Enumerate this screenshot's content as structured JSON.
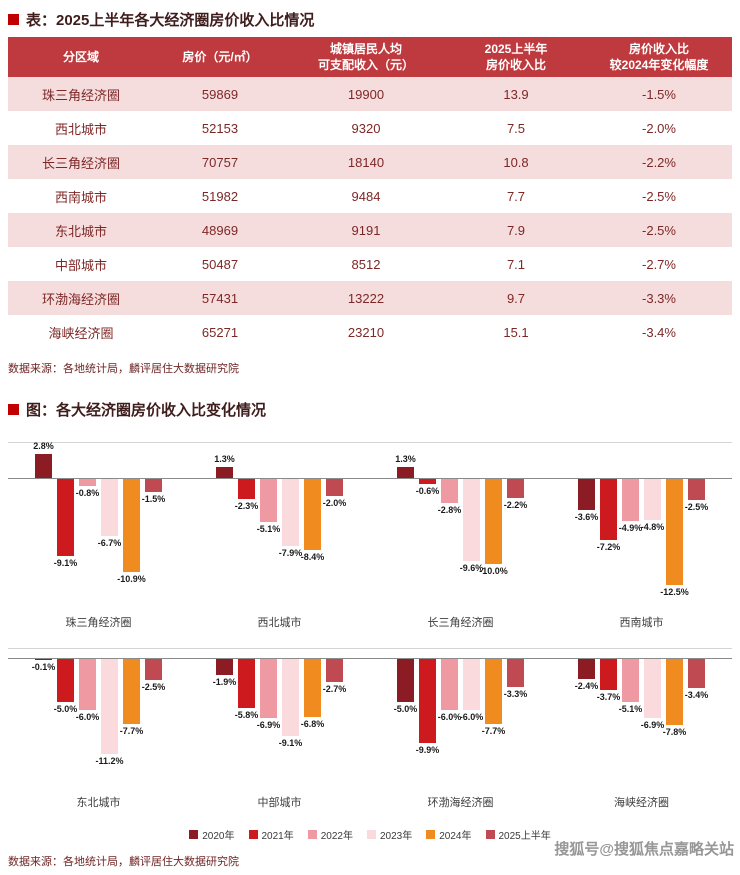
{
  "page": {
    "table_title": "表：2025上半年各大经济圈房价收入比情况",
    "chart_title": "图：各大经济圈房价收入比变化情况",
    "table_source": "数据来源：各地统计局，麟评居住大数据研究院",
    "chart_source": "数据来源：各地统计局，麟评居住大数据研究院",
    "watermark": "搜狐号@搜狐焦点嘉略关站"
  },
  "colors": {
    "accent_red": "#c00000",
    "table_header_bg": "#bf3a3e",
    "table_alt_row_bg": "#f6dddd",
    "table_text": "#7d2727"
  },
  "table": {
    "headers": [
      "分区域",
      "房价（元/㎡）",
      "城镇居民人均\n可支配收入（元）",
      "2025上半年\n房价收入比",
      "房价收入比\n较2024年变化幅度"
    ],
    "rows": [
      [
        "珠三角经济圈",
        "59869",
        "19900",
        "13.9",
        "-1.5%"
      ],
      [
        "西北城市",
        "52153",
        "9320",
        "7.5",
        "-2.0%"
      ],
      [
        "长三角经济圈",
        "70757",
        "18140",
        "10.8",
        "-2.2%"
      ],
      [
        "西南城市",
        "51982",
        "9484",
        "7.7",
        "-2.5%"
      ],
      [
        "东北城市",
        "48969",
        "9191",
        "7.9",
        "-2.5%"
      ],
      [
        "中部城市",
        "50487",
        "8512",
        "7.1",
        "-2.7%"
      ],
      [
        "环渤海经济圈",
        "57431",
        "13222",
        "9.7",
        "-3.3%"
      ],
      [
        "海峡经济圈",
        "65271",
        "23210",
        "15.1",
        "-3.4%"
      ]
    ]
  },
  "chart_data": {
    "type": "bar",
    "title": "各大经济圈房价收入比变化情况",
    "unit": "%",
    "ylim": [
      -13,
      3
    ],
    "grid": false,
    "legend_position": "bottom",
    "series_labels": [
      "2020年",
      "2021年",
      "2022年",
      "2023年",
      "2024年",
      "2025上半年"
    ],
    "series_colors": [
      "#8c1c24",
      "#cd1a1f",
      "#ef9aa2",
      "#fadadd",
      "#ef8b1f",
      "#bf4a52"
    ],
    "rows_of_groups": [
      [
        0,
        1,
        2,
        3
      ],
      [
        4,
        5,
        6,
        7
      ]
    ],
    "groups": [
      {
        "name": "珠三角经济圈",
        "values": [
          2.8,
          -9.1,
          -0.8,
          -6.7,
          -10.9,
          -1.5
        ]
      },
      {
        "name": "西北城市",
        "values": [
          1.3,
          -2.3,
          -5.1,
          -7.9,
          -8.4,
          -2.0
        ]
      },
      {
        "name": "长三角经济圈",
        "values": [
          1.3,
          -0.6,
          -2.8,
          -9.6,
          -10.0,
          -2.2
        ]
      },
      {
        "name": "西南城市",
        "values": [
          -3.6,
          -7.2,
          -4.9,
          -4.8,
          -12.5,
          -2.5
        ]
      },
      {
        "name": "东北城市",
        "values": [
          -0.1,
          -5.0,
          -6.0,
          -11.2,
          -7.7,
          -2.5
        ]
      },
      {
        "name": "中部城市",
        "values": [
          -1.9,
          -5.8,
          -6.9,
          -9.1,
          -6.8,
          -2.7
        ]
      },
      {
        "name": "环渤海经济圈",
        "values": [
          -5.0,
          -9.9,
          -6.0,
          -6.0,
          -7.7,
          -3.3
        ]
      },
      {
        "name": "海峡经济圈",
        "values": [
          -2.4,
          -3.7,
          -5.1,
          -6.9,
          -7.8,
          -3.4
        ]
      }
    ]
  }
}
